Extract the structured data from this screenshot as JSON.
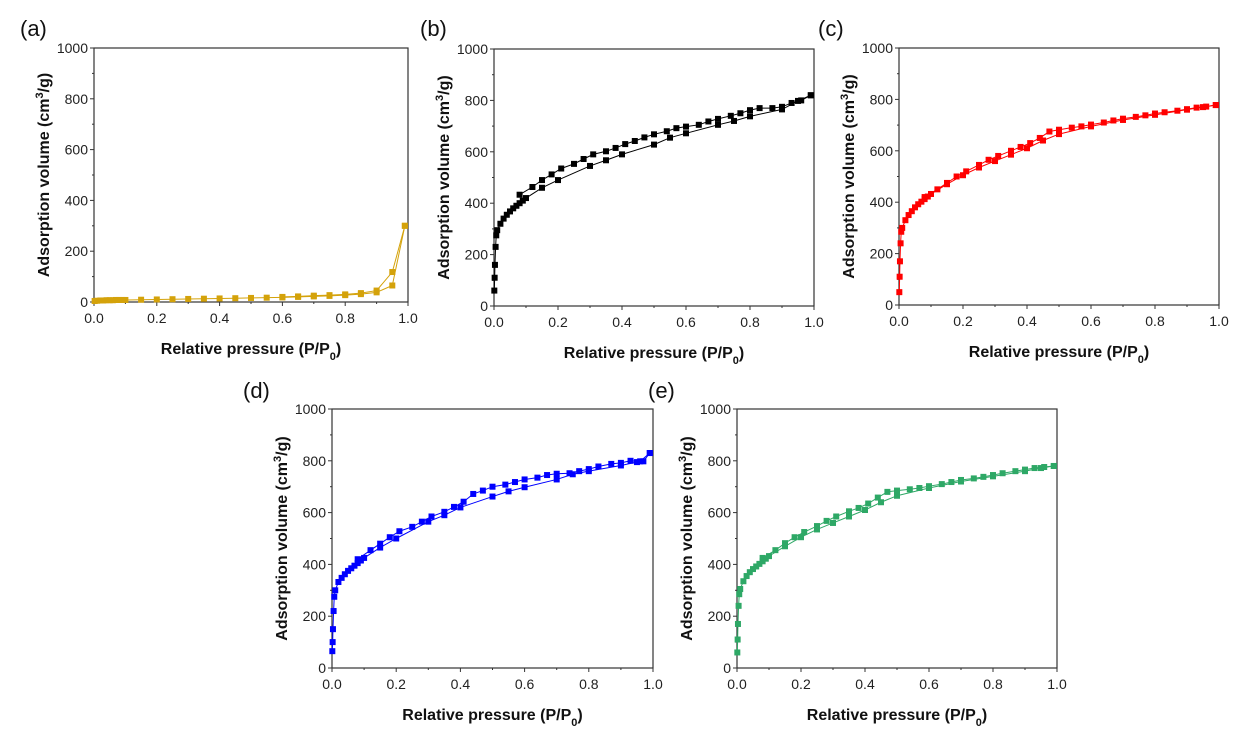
{
  "chart_data": [
    {
      "type": "line",
      "panel_label": "(a)",
      "color": "#D4A20A",
      "xlabel": {
        "main": "Relative pressure (P/P",
        "sub": "0",
        "end": ")"
      },
      "ylabel": {
        "main": "Adsorption volume (cm",
        "sup": "3",
        "end": "/g)"
      },
      "xlim": [
        0,
        1
      ],
      "ylim": [
        0,
        1000
      ],
      "xticks": [
        "0.0",
        "0.2",
        "0.4",
        "0.6",
        "0.8",
        "1.0"
      ],
      "yticks": [
        "0",
        "200",
        "400",
        "600",
        "800",
        "1000"
      ],
      "series": [
        {
          "branch": "adsorption",
          "x": [
            0.002,
            0.01,
            0.02,
            0.03,
            0.04,
            0.05,
            0.06,
            0.07,
            0.08,
            0.09,
            0.1,
            0.15,
            0.2,
            0.25,
            0.3,
            0.35,
            0.4,
            0.45,
            0.5,
            0.55,
            0.6,
            0.65,
            0.7,
            0.75,
            0.8,
            0.85,
            0.9,
            0.95,
            0.99
          ],
          "y": [
            4,
            5,
            6,
            6,
            7,
            7,
            7,
            8,
            8,
            8,
            8,
            9,
            10,
            11,
            12,
            13,
            14,
            15,
            16,
            17,
            18,
            20,
            22,
            24,
            27,
            31,
            38,
            65,
            300
          ]
        },
        {
          "branch": "desorption",
          "x": [
            0.99,
            0.95,
            0.9,
            0.85,
            0.8,
            0.75,
            0.7,
            0.65,
            0.6
          ],
          "y": [
            300,
            118,
            45,
            35,
            30,
            27,
            25,
            22,
            20
          ]
        }
      ]
    },
    {
      "type": "line",
      "panel_label": "(b)",
      "color": "#000000",
      "xlabel": {
        "main": "Relative pressure (P/P",
        "sub": "0",
        "end": ")"
      },
      "ylabel": {
        "main": "Adsorption volume (cm",
        "sup": "3",
        "end": "/g)"
      },
      "xlim": [
        0,
        1
      ],
      "ylim": [
        0,
        1000
      ],
      "xticks": [
        "0.0",
        "0.2",
        "0.4",
        "0.6",
        "0.8",
        "1.0"
      ],
      "yticks": [
        "0",
        "200",
        "400",
        "600",
        "800",
        "1000"
      ],
      "series": [
        {
          "branch": "adsorption",
          "x": [
            0.001,
            0.002,
            0.003,
            0.005,
            0.007,
            0.01,
            0.02,
            0.03,
            0.04,
            0.05,
            0.06,
            0.07,
            0.08,
            0.09,
            0.1,
            0.15,
            0.2,
            0.3,
            0.35,
            0.4,
            0.5,
            0.55,
            0.6,
            0.7,
            0.75,
            0.8,
            0.9,
            0.95,
            0.99
          ],
          "y": [
            60,
            110,
            160,
            230,
            275,
            295,
            320,
            340,
            355,
            368,
            380,
            390,
            400,
            410,
            420,
            460,
            490,
            545,
            567,
            590,
            628,
            655,
            672,
            705,
            720,
            738,
            765,
            798,
            820
          ]
        },
        {
          "branch": "desorption",
          "x": [
            0.99,
            0.96,
            0.93,
            0.9,
            0.87,
            0.83,
            0.8,
            0.77,
            0.74,
            0.7,
            0.67,
            0.64,
            0.6,
            0.57,
            0.54,
            0.5,
            0.47,
            0.44,
            0.41,
            0.38,
            0.35,
            0.31,
            0.28,
            0.25,
            0.21,
            0.18,
            0.15,
            0.12,
            0.08
          ],
          "y": [
            820,
            800,
            790,
            775,
            770,
            770,
            762,
            750,
            740,
            728,
            718,
            705,
            698,
            692,
            680,
            668,
            656,
            642,
            630,
            615,
            602,
            590,
            572,
            553,
            535,
            512,
            490,
            463,
            433
          ]
        }
      ]
    },
    {
      "type": "line",
      "panel_label": "(c)",
      "color": "#FF0000",
      "xlabel": {
        "main": "Relative pressure (P/P",
        "sub": "0",
        "end": ")"
      },
      "ylabel": {
        "main": "Adsorption volume (cm",
        "sup": "3",
        "end": "/g)"
      },
      "xlim": [
        0,
        1
      ],
      "ylim": [
        0,
        1000
      ],
      "xticks": [
        "0.0",
        "0.2",
        "0.4",
        "0.6",
        "0.8",
        "1.0"
      ],
      "yticks": [
        "0",
        "200",
        "400",
        "600",
        "800",
        "1000"
      ],
      "series": [
        {
          "branch": "adsorption",
          "x": [
            0.001,
            0.002,
            0.003,
            0.005,
            0.007,
            0.01,
            0.02,
            0.03,
            0.04,
            0.05,
            0.06,
            0.07,
            0.08,
            0.09,
            0.1,
            0.15,
            0.2,
            0.25,
            0.3,
            0.35,
            0.4,
            0.45,
            0.5,
            0.6,
            0.7,
            0.8,
            0.9,
            0.95,
            0.99
          ],
          "y": [
            50,
            110,
            170,
            240,
            285,
            300,
            330,
            350,
            365,
            380,
            392,
            402,
            412,
            422,
            432,
            470,
            505,
            535,
            560,
            585,
            610,
            640,
            665,
            695,
            720,
            740,
            760,
            770,
            778
          ]
        },
        {
          "branch": "desorption",
          "x": [
            0.99,
            0.96,
            0.93,
            0.9,
            0.87,
            0.83,
            0.8,
            0.77,
            0.74,
            0.7,
            0.67,
            0.64,
            0.6,
            0.57,
            0.54,
            0.5,
            0.47,
            0.44,
            0.41,
            0.38,
            0.35,
            0.31,
            0.28,
            0.25,
            0.21,
            0.18,
            0.15,
            0.12,
            0.08
          ],
          "y": [
            778,
            772,
            768,
            762,
            756,
            750,
            745,
            738,
            732,
            725,
            718,
            710,
            702,
            695,
            690,
            682,
            675,
            650,
            630,
            615,
            600,
            580,
            565,
            545,
            520,
            500,
            475,
            450,
            420
          ]
        }
      ]
    },
    {
      "type": "line",
      "panel_label": "(d)",
      "color": "#0000FF",
      "xlabel": {
        "main": "Relative pressure (P/P",
        "sub": "0",
        "end": ")"
      },
      "ylabel": {
        "main": "Adsorption volume (cm",
        "sup": "3",
        "end": "/g)"
      },
      "xlim": [
        0,
        1
      ],
      "ylim": [
        0,
        1000
      ],
      "xticks": [
        "0.0",
        "0.2",
        "0.4",
        "0.6",
        "0.8",
        "1.0"
      ],
      "yticks": [
        "0",
        "200",
        "400",
        "600",
        "800",
        "1000"
      ],
      "series": [
        {
          "branch": "adsorption",
          "x": [
            0.001,
            0.002,
            0.003,
            0.005,
            0.007,
            0.01,
            0.02,
            0.03,
            0.04,
            0.05,
            0.06,
            0.07,
            0.08,
            0.09,
            0.1,
            0.15,
            0.2,
            0.3,
            0.35,
            0.4,
            0.5,
            0.55,
            0.6,
            0.7,
            0.75,
            0.8,
            0.9,
            0.95,
            0.97,
            0.99
          ],
          "y": [
            65,
            100,
            150,
            220,
            275,
            300,
            332,
            348,
            362,
            375,
            385,
            395,
            405,
            415,
            425,
            465,
            500,
            565,
            590,
            620,
            662,
            682,
            698,
            728,
            748,
            760,
            782,
            795,
            798,
            830
          ]
        },
        {
          "branch": "desorption",
          "x": [
            0.99,
            0.96,
            0.93,
            0.9,
            0.87,
            0.83,
            0.8,
            0.77,
            0.74,
            0.7,
            0.67,
            0.64,
            0.6,
            0.57,
            0.54,
            0.5,
            0.47,
            0.44,
            0.41,
            0.38,
            0.35,
            0.31,
            0.28,
            0.25,
            0.21,
            0.18,
            0.15,
            0.12,
            0.08
          ],
          "y": [
            830,
            798,
            800,
            792,
            788,
            778,
            768,
            760,
            752,
            750,
            745,
            735,
            728,
            718,
            708,
            700,
            685,
            672,
            642,
            622,
            603,
            585,
            565,
            545,
            528,
            505,
            480,
            455,
            420
          ]
        }
      ]
    },
    {
      "type": "line",
      "panel_label": "(e)",
      "color": "#2EA866",
      "xlabel": {
        "main": "Relative pressure (P/P",
        "sub": "0",
        "end": ")"
      },
      "ylabel": {
        "main": "Adsorption volume (cm",
        "sup": "3",
        "end": "/g)"
      },
      "xlim": [
        0,
        1
      ],
      "ylim": [
        0,
        1000
      ],
      "xticks": [
        "0.0",
        "0.2",
        "0.4",
        "0.6",
        "0.8",
        "1.0"
      ],
      "yticks": [
        "0",
        "200",
        "400",
        "600",
        "800",
        "1000"
      ],
      "series": [
        {
          "branch": "adsorption",
          "x": [
            0.001,
            0.002,
            0.003,
            0.005,
            0.007,
            0.01,
            0.02,
            0.03,
            0.04,
            0.05,
            0.06,
            0.07,
            0.08,
            0.09,
            0.1,
            0.15,
            0.2,
            0.25,
            0.3,
            0.35,
            0.4,
            0.45,
            0.5,
            0.6,
            0.7,
            0.8,
            0.9,
            0.95,
            0.99
          ],
          "y": [
            60,
            110,
            170,
            240,
            285,
            305,
            335,
            355,
            370,
            382,
            392,
            402,
            412,
            422,
            432,
            470,
            505,
            535,
            560,
            585,
            610,
            640,
            665,
            695,
            720,
            740,
            760,
            772,
            780
          ]
        },
        {
          "branch": "desorption",
          "x": [
            0.99,
            0.96,
            0.93,
            0.9,
            0.87,
            0.83,
            0.8,
            0.77,
            0.74,
            0.7,
            0.67,
            0.64,
            0.6,
            0.57,
            0.54,
            0.5,
            0.47,
            0.44,
            0.41,
            0.38,
            0.35,
            0.31,
            0.28,
            0.25,
            0.21,
            0.18,
            0.15,
            0.12,
            0.08
          ],
          "y": [
            780,
            776,
            772,
            766,
            760,
            752,
            745,
            738,
            732,
            726,
            718,
            710,
            702,
            695,
            690,
            685,
            680,
            658,
            635,
            618,
            605,
            585,
            568,
            548,
            525,
            505,
            482,
            455,
            425
          ]
        }
      ]
    }
  ]
}
